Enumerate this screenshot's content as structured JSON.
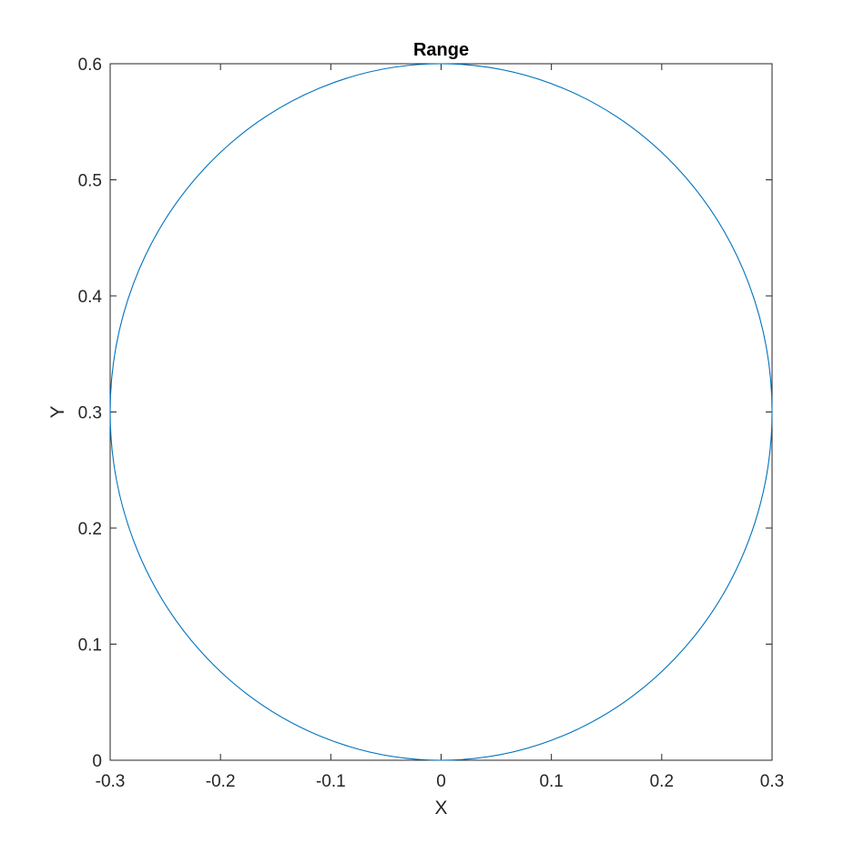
{
  "chart_data": {
    "type": "line",
    "title": "Range",
    "xlabel": "X",
    "ylabel": "Y",
    "xlim": [
      -0.3,
      0.3
    ],
    "ylim": [
      0,
      0.6
    ],
    "xticks": [
      -0.3,
      -0.2,
      -0.1,
      0,
      0.1,
      0.2,
      0.3
    ],
    "xtick_labels": [
      "-0.3",
      "-0.2",
      "-0.1",
      "0",
      "0.1",
      "0.2",
      "0.3"
    ],
    "yticks": [
      0,
      0.1,
      0.2,
      0.3,
      0.4,
      0.5,
      0.6
    ],
    "ytick_labels": [
      "0",
      "0.1",
      "0.2",
      "0.3",
      "0.4",
      "0.5",
      "0.6"
    ],
    "grid": false,
    "box": true,
    "series": [
      {
        "shape": "circle",
        "center": [
          0,
          0.3
        ],
        "radius": 0.3,
        "color": "#0072BD"
      }
    ]
  },
  "colors": {
    "axis": "#262626",
    "background": "#ffffff",
    "title": "#000000"
  }
}
